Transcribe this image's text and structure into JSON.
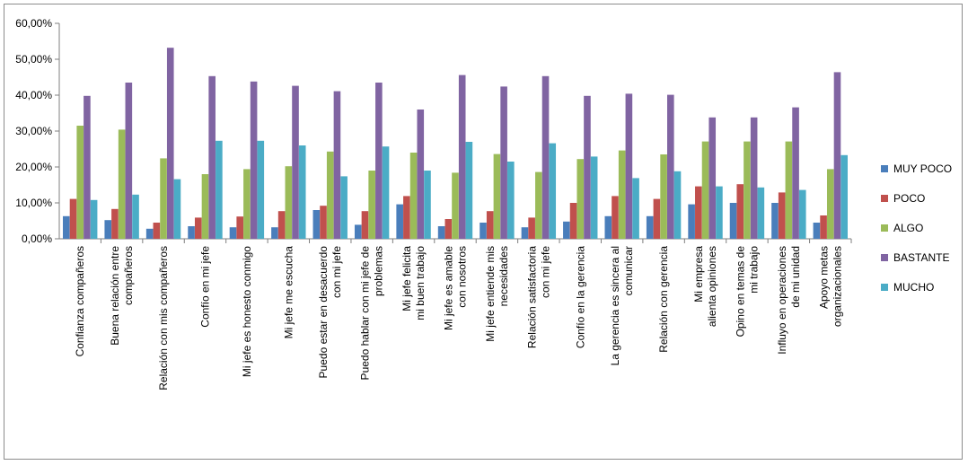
{
  "chart_data": {
    "type": "bar",
    "title": "",
    "xlabel": "",
    "ylabel": "",
    "ylim": [
      0,
      60
    ],
    "y_ticks": [
      "0,00%",
      "10,00%",
      "20,00%",
      "30,00%",
      "40,00%",
      "50,00%",
      "60,00%"
    ],
    "grid": false,
    "legend_position": "right",
    "categories": [
      [
        "Confianza compañeros"
      ],
      [
        "Buena relación entre",
        "compañeros"
      ],
      [
        "Relación con mis compañeros"
      ],
      [
        "Confío en mi jefe"
      ],
      [
        "Mi jefe es honesto conmigo"
      ],
      [
        "Mi jefe me escucha"
      ],
      [
        "Puedo estar en desacuerdo",
        "con mi jefe"
      ],
      [
        "Puedo hablar con mi jefe de",
        "problemas"
      ],
      [
        "Mi jefe felicita",
        "mi buen trabajo"
      ],
      [
        "Mi jefe es amable",
        "con nosotros"
      ],
      [
        "Mi jefe entiende mis",
        "necesidades"
      ],
      [
        "Relación satisfactoria",
        "con mi jefe"
      ],
      [
        "Confío en la gerencia"
      ],
      [
        "La gerencia es sincera al",
        "comunicar"
      ],
      [
        "Relación con gerencia"
      ],
      [
        "Mi empresa",
        "alienta opiniones"
      ],
      [
        "Opino en temas de",
        "mi trabajo"
      ],
      [
        "Influyo en operaciones",
        "de mi unidad"
      ],
      [
        "Apoyo metas",
        "organizacionales"
      ]
    ],
    "series": [
      {
        "name": "MUY POCO",
        "color": "#4a7ebb",
        "values": [
          6.3,
          5.2,
          2.8,
          3.5,
          3.2,
          3.2,
          8.0,
          3.9,
          9.6,
          3.5,
          4.5,
          3.2,
          4.8,
          6.3,
          6.3,
          9.6,
          10.0,
          10.0,
          4.5
        ]
      },
      {
        "name": "POCO",
        "color": "#c0504d",
        "values": [
          11.1,
          8.3,
          4.5,
          5.9,
          6.2,
          7.7,
          9.2,
          7.7,
          11.9,
          5.5,
          7.7,
          5.9,
          10.0,
          11.9,
          11.1,
          14.6,
          15.2,
          12.9,
          6.5
        ]
      },
      {
        "name": "ALGO",
        "color": "#9bbb59",
        "values": [
          31.5,
          30.4,
          22.4,
          18.0,
          19.4,
          20.2,
          24.3,
          19.0,
          24.0,
          18.4,
          23.6,
          18.6,
          22.2,
          24.6,
          23.5,
          27.1,
          27.1,
          27.1,
          19.4
        ]
      },
      {
        "name": "BASTANTE",
        "color": "#8064a2",
        "values": [
          39.8,
          43.5,
          53.2,
          45.3,
          43.8,
          42.6,
          41.1,
          43.5,
          36.0,
          45.6,
          42.4,
          45.3,
          39.8,
          40.4,
          40.1,
          33.8,
          33.8,
          36.6,
          46.4
        ]
      },
      {
        "name": "MUCHO",
        "color": "#4bacc6",
        "values": [
          10.8,
          12.3,
          16.6,
          27.3,
          27.3,
          26.0,
          17.4,
          25.7,
          19.0,
          27.0,
          21.5,
          26.6,
          22.9,
          16.9,
          18.8,
          14.6,
          14.3,
          13.6,
          23.3
        ]
      }
    ]
  }
}
